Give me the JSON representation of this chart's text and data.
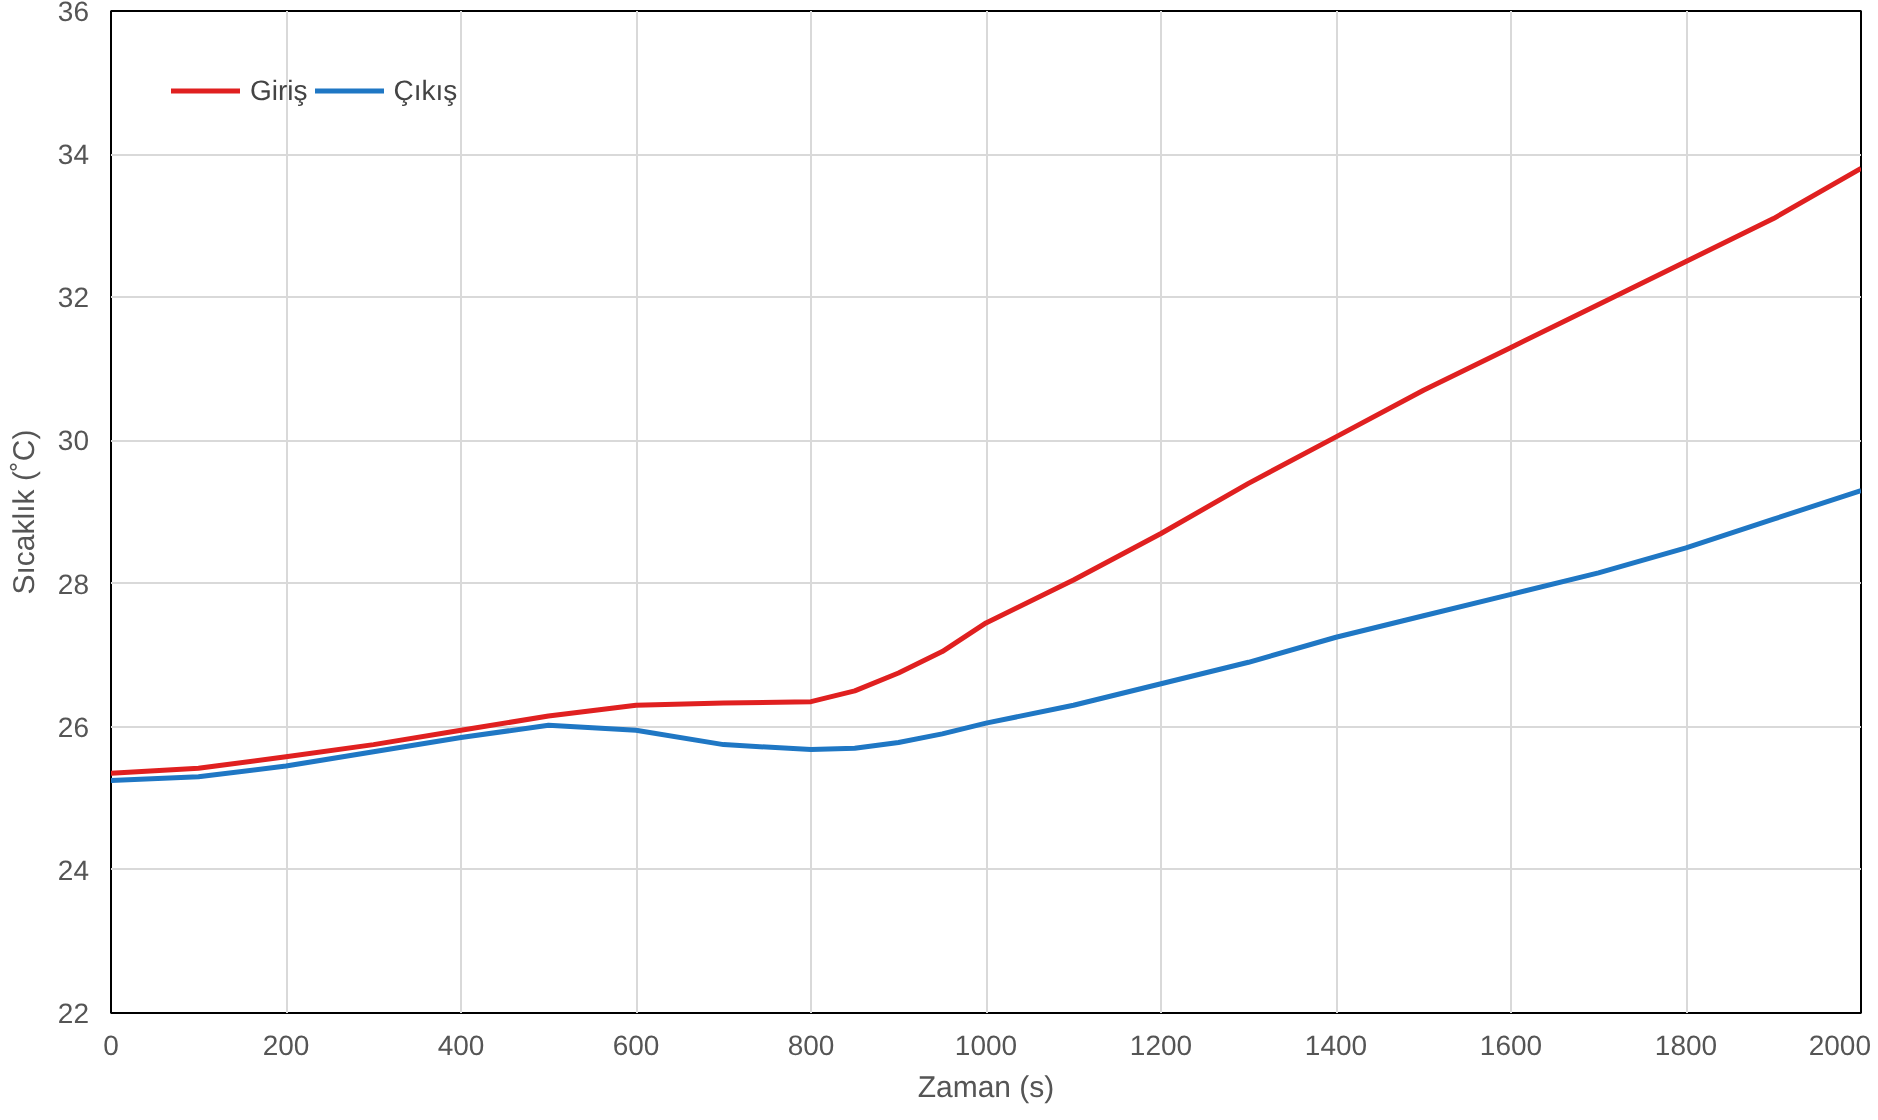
{
  "chart_data": {
    "type": "line",
    "xlabel": "Zaman (s)",
    "ylabel": "Sıcaklık (˚C)",
    "xlim": [
      0,
      2000
    ],
    "xticks": [
      0,
      200,
      400,
      600,
      800,
      1000,
      1200,
      1400,
      1600,
      1800,
      2000
    ],
    "ylim": [
      22,
      36
    ],
    "yticks": [
      22,
      24,
      26,
      28,
      30,
      32,
      34,
      36
    ],
    "grid": true,
    "legend": "top left",
    "marker": "none",
    "line_style": "solid",
    "x": [
      0,
      100,
      200,
      300,
      400,
      500,
      600,
      700,
      800,
      850,
      900,
      950,
      1000,
      1100,
      1200,
      1300,
      1400,
      1500,
      1600,
      1700,
      1800,
      1900,
      2000
    ],
    "series": [
      {
        "name": "Giriş",
        "color": "#e02020",
        "values": [
          25.35,
          25.42,
          25.58,
          25.75,
          25.95,
          26.15,
          26.3,
          26.33,
          26.35,
          26.5,
          26.75,
          27.05,
          27.45,
          28.05,
          28.7,
          29.4,
          30.05,
          30.7,
          31.3,
          31.9,
          32.5,
          33.1,
          33.8
        ]
      },
      {
        "name": "Çıkış",
        "color": "#1f77c4",
        "values": [
          25.25,
          25.3,
          25.45,
          25.65,
          25.85,
          26.02,
          25.95,
          25.75,
          25.68,
          25.7,
          25.78,
          25.9,
          26.05,
          26.3,
          26.6,
          26.9,
          27.25,
          27.55,
          27.85,
          28.15,
          28.5,
          28.9,
          29.3
        ]
      }
    ]
  }
}
